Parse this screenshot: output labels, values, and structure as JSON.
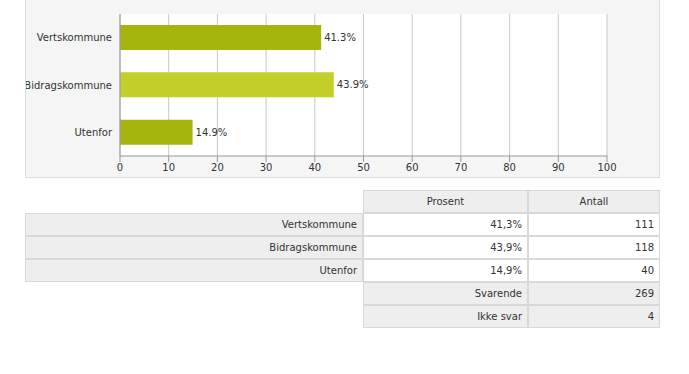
{
  "chart_data": {
    "type": "bar",
    "orientation": "horizontal",
    "categories": [
      "Vertskommune",
      "Bidragskommune",
      "Utenfor"
    ],
    "values": [
      41.3,
      43.9,
      14.9
    ],
    "value_labels": [
      "41.3%",
      "43.9%",
      "14.9%"
    ],
    "data_labels": true,
    "colors": [
      "#a6b40e",
      "#c3cf2a",
      "#a6b40e"
    ],
    "xlim": [
      0,
      100
    ],
    "xticks": [
      0,
      10,
      20,
      30,
      40,
      50,
      60,
      70,
      80,
      90,
      100
    ],
    "grid": true
  },
  "table": {
    "columns": [
      "Prosent",
      "Antall"
    ],
    "rows": [
      [
        "Vertskommune",
        "41,3%",
        "111"
      ],
      [
        "Bidragskommune",
        "43,9%",
        "118"
      ],
      [
        "Utenfor",
        "14,9%",
        "40"
      ]
    ],
    "footer": [
      [
        "Svarende",
        "269"
      ],
      [
        "Ikke svar",
        "4"
      ]
    ]
  }
}
